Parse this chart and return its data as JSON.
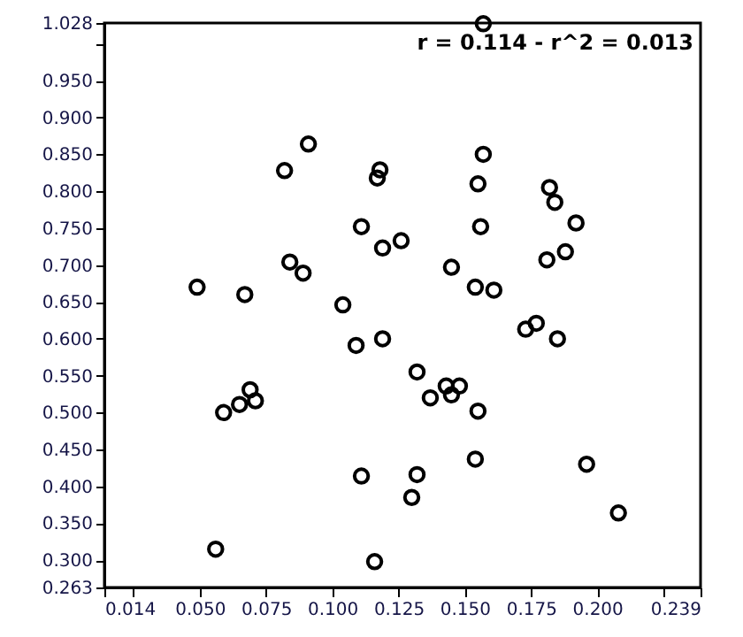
{
  "chart_data": {
    "type": "scatter",
    "marker": "circle",
    "grid": false,
    "annotations": [
      "r = 0.114 - r^2 = 0.013"
    ],
    "xlim": [
      0.014,
      0.239
    ],
    "ylim": [
      0.263,
      1.028
    ],
    "xticks": [
      {
        "value": 0.014,
        "label": "0.014"
      },
      {
        "value": 0.025,
        "label": null
      },
      {
        "value": 0.05,
        "label": "0.050"
      },
      {
        "value": 0.075,
        "label": "0.075"
      },
      {
        "value": 0.1,
        "label": "0.100"
      },
      {
        "value": 0.125,
        "label": "0.125"
      },
      {
        "value": 0.15,
        "label": "0.150"
      },
      {
        "value": 0.175,
        "label": "0.175"
      },
      {
        "value": 0.2,
        "label": "0.200"
      },
      {
        "value": 0.225,
        "label": null
      },
      {
        "value": 0.239,
        "label": "0.239"
      }
    ],
    "yticks": [
      {
        "value": 0.263,
        "label": "0.263"
      },
      {
        "value": 0.3,
        "label": "0.300"
      },
      {
        "value": 0.35,
        "label": "0.350"
      },
      {
        "value": 0.4,
        "label": "0.400"
      },
      {
        "value": 0.45,
        "label": "0.450"
      },
      {
        "value": 0.5,
        "label": "0.500"
      },
      {
        "value": 0.55,
        "label": "0.550"
      },
      {
        "value": 0.6,
        "label": "0.600"
      },
      {
        "value": 0.65,
        "label": "0.650"
      },
      {
        "value": 0.7,
        "label": "0.700"
      },
      {
        "value": 0.75,
        "label": "0.750"
      },
      {
        "value": 0.8,
        "label": "0.800"
      },
      {
        "value": 0.85,
        "label": "0.850"
      },
      {
        "value": 0.9,
        "label": "0.900"
      },
      {
        "value": 0.95,
        "label": "0.950"
      },
      {
        "value": 1.0,
        "label": null
      },
      {
        "value": 1.028,
        "label": "1.028"
      }
    ],
    "series": [
      {
        "color": "#000000",
        "x": [
          0.091,
          0.082,
          0.111,
          0.084,
          0.089,
          0.049,
          0.067,
          0.104,
          0.157,
          0.157,
          0.118,
          0.117,
          0.155,
          0.182,
          0.184,
          0.156,
          0.192,
          0.119,
          0.126,
          0.181,
          0.188,
          0.145,
          0.154,
          0.161,
          0.109,
          0.069,
          0.059,
          0.065,
          0.071,
          0.111,
          0.056,
          0.116,
          0.119,
          0.173,
          0.177,
          0.185,
          0.132,
          0.143,
          0.148,
          0.137,
          0.145,
          0.155,
          0.132,
          0.154,
          0.196,
          0.13,
          0.208
        ],
        "values": [
          0.864,
          0.828,
          0.752,
          0.704,
          0.689,
          0.67,
          0.66,
          0.646,
          1.027,
          0.85,
          0.829,
          0.818,
          0.81,
          0.805,
          0.785,
          0.752,
          0.757,
          0.723,
          0.733,
          0.707,
          0.718,
          0.697,
          0.67,
          0.666,
          0.591,
          0.531,
          0.5,
          0.511,
          0.516,
          0.414,
          0.315,
          0.298,
          0.6,
          0.613,
          0.621,
          0.6,
          0.555,
          0.536,
          0.536,
          0.52,
          0.524,
          0.502,
          0.416,
          0.437,
          0.43,
          0.385,
          0.364
        ]
      }
    ]
  }
}
